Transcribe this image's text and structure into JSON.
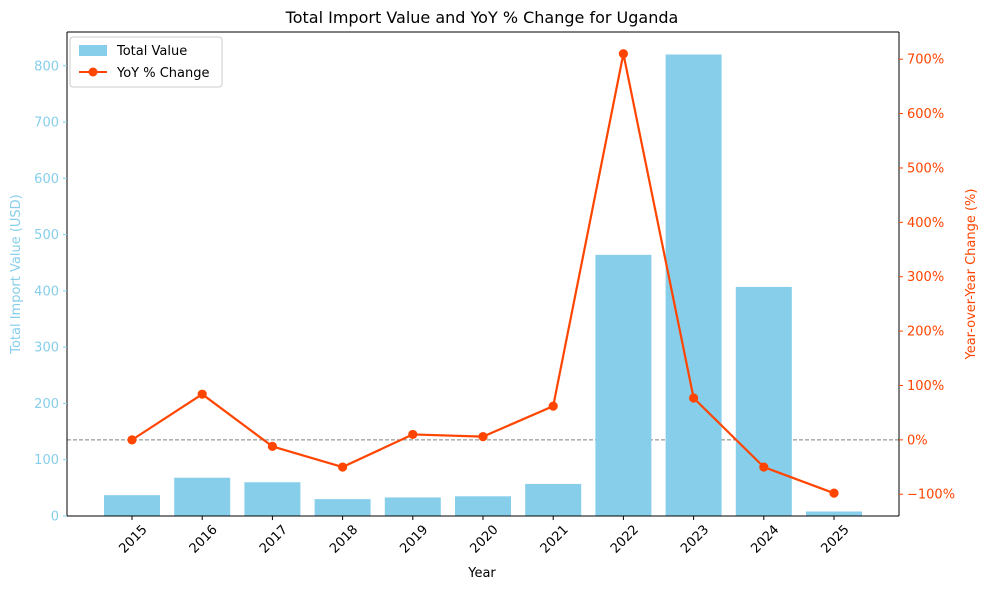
{
  "chart_data": {
    "type": "bar",
    "title": "Total Import Value and YoY % Change for Uganda",
    "xlabel": "Year",
    "ylabel": "Total Import Value (USD)",
    "y2label": "Year-over-Year Change (%)",
    "categories": [
      "2015",
      "2016",
      "2017",
      "2018",
      "2019",
      "2020",
      "2021",
      "2022",
      "2023",
      "2024",
      "2025"
    ],
    "series": [
      {
        "name": "Total Value",
        "type": "bar",
        "axis": "left",
        "color": "#87ceeb",
        "values": [
          37,
          68,
          60,
          30,
          33,
          35,
          57,
          464,
          820,
          407,
          8
        ]
      },
      {
        "name": "YoY % Change",
        "type": "line",
        "axis": "right",
        "color": "#ff4500",
        "values": [
          0,
          84,
          -12,
          -50,
          10,
          6,
          62,
          710,
          77,
          -50,
          -98
        ]
      }
    ],
    "ylim": [
      0,
      860
    ],
    "yticks": [
      0,
      100,
      200,
      300,
      400,
      500,
      600,
      700,
      800
    ],
    "y2lim": [
      -140,
      750
    ],
    "y2ticks": [
      -100,
      0,
      100,
      200,
      300,
      400,
      500,
      600,
      700
    ],
    "y2tick_suffix": "%",
    "reference_line": {
      "axis": "right",
      "value": 0,
      "style": "dashed",
      "color": "#808080"
    },
    "legend_position": "top-left",
    "grid": false
  }
}
